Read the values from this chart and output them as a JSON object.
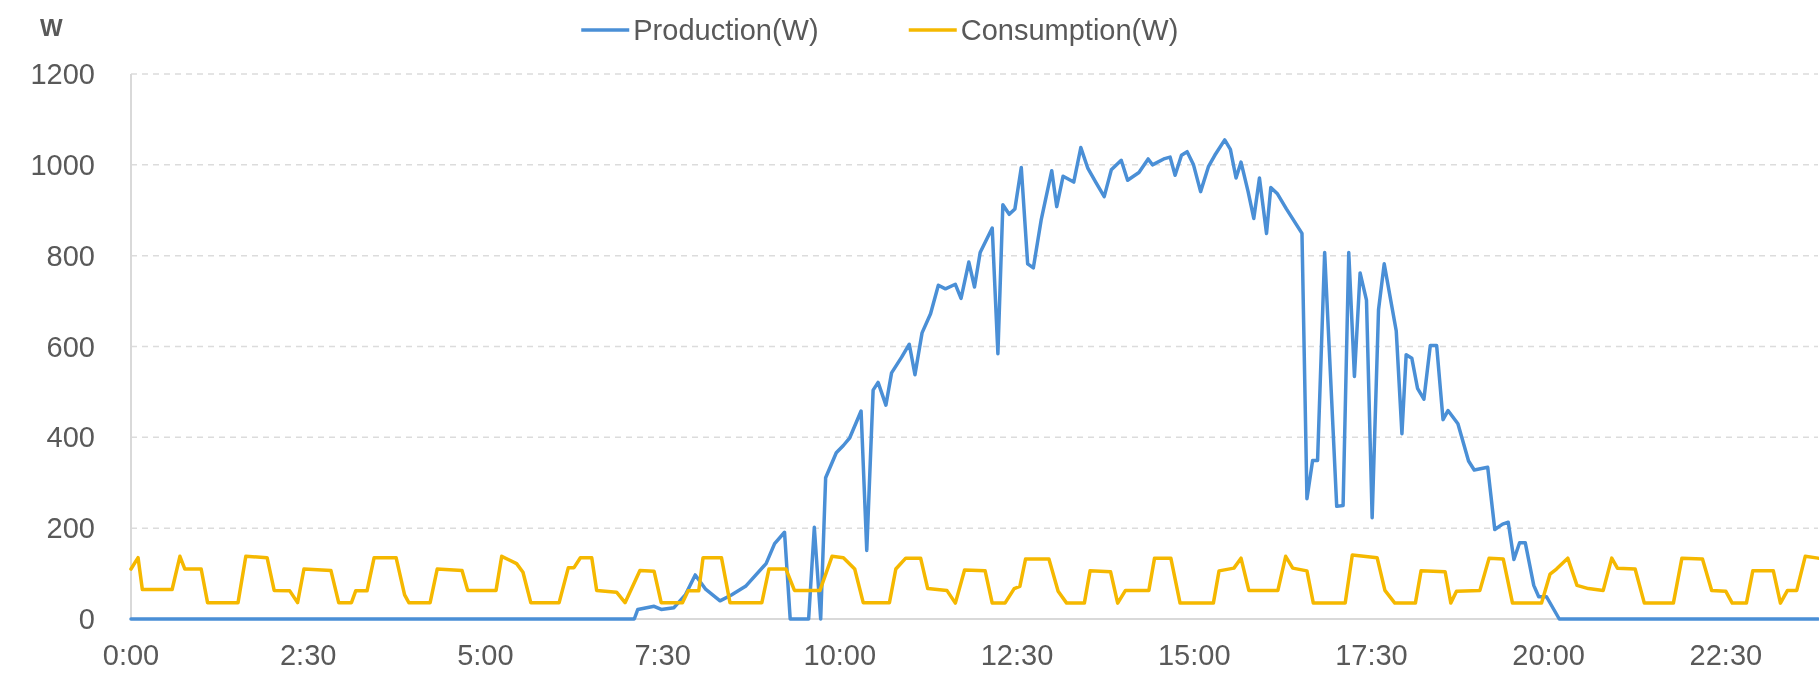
{
  "chart_data": {
    "type": "line",
    "ylabel": "W",
    "xlim": [
      0,
      23.8
    ],
    "xticks": [
      {
        "value": 0,
        "label": "0:00"
      },
      {
        "value": 2.5,
        "label": "2:30"
      },
      {
        "value": 5,
        "label": "5:00"
      },
      {
        "value": 7.5,
        "label": "7:30"
      },
      {
        "value": 10,
        "label": "10:00"
      },
      {
        "value": 12.5,
        "label": "12:30"
      },
      {
        "value": 15,
        "label": "15:00"
      },
      {
        "value": 17.5,
        "label": "17:30"
      },
      {
        "value": 20,
        "label": "20:00"
      },
      {
        "value": 22.5,
        "label": "22:30"
      }
    ],
    "ylim": [
      0,
      1200
    ],
    "yticks": [
      0,
      200,
      400,
      600,
      800,
      1000,
      1200
    ],
    "grid": "y",
    "legend": "top",
    "series": [
      {
        "name": "Production(W)",
        "color": "#4a8fd6",
        "x": [
          0,
          7.1,
          7.15,
          7.38,
          7.48,
          7.66,
          7.82,
          7.96,
          8.11,
          8.31,
          8.47,
          8.67,
          8.96,
          9.08,
          9.22,
          9.3,
          9.56,
          9.64,
          9.73,
          9.8,
          9.95,
          10.05,
          10.14,
          10.3,
          10.38,
          10.47,
          10.54,
          10.65,
          10.73,
          10.87,
          10.98,
          11.06,
          11.16,
          11.28,
          11.39,
          11.49,
          11.63,
          11.71,
          11.82,
          11.9,
          11.98,
          12.15,
          12.23,
          12.3,
          12.39,
          12.47,
          12.56,
          12.65,
          12.73,
          12.84,
          12.99,
          13.06,
          13.15,
          13.3,
          13.4,
          13.5,
          13.61,
          13.73,
          13.83,
          13.97,
          14.06,
          14.22,
          14.35,
          14.41,
          14.57,
          14.66,
          14.73,
          14.82,
          14.9,
          14.99,
          15.09,
          15.2,
          15.29,
          15.43,
          15.51,
          15.59,
          15.66,
          15.76,
          15.84,
          15.92,
          16.02,
          16.08,
          16.17,
          16.3,
          16.52,
          16.59,
          16.67,
          16.74,
          16.84,
          17.01,
          17.1,
          17.18,
          17.26,
          17.34,
          17.43,
          17.51,
          17.6,
          17.68,
          17.85,
          17.93,
          17.99,
          18.07,
          18.15,
          18.24,
          18.33,
          18.42,
          18.51,
          18.58,
          18.72,
          18.87,
          18.95,
          19.14,
          19.24,
          19.35,
          19.43,
          19.51,
          19.59,
          19.67,
          19.79,
          19.86,
          19.97,
          20.15,
          23.8
        ],
        "values": [
          0,
          0,
          21,
          28,
          21,
          25,
          53,
          97,
          65,
          40,
          53,
          72,
          122,
          166,
          191,
          0,
          0,
          202,
          0,
          311,
          366,
          382,
          399,
          458,
          151,
          504,
          521,
          471,
          542,
          576,
          605,
          538,
          630,
          672,
          735,
          727,
          737,
          706,
          786,
          731,
          807,
          861,
          584,
          912,
          891,
          903,
          994,
          782,
          773,
          878,
          987,
          908,
          975,
          962,
          1038,
          992,
          962,
          930,
          989,
          1010,
          966,
          983,
          1013,
          1000,
          1013,
          1017,
          977,
          1021,
          1029,
          1000,
          941,
          996,
          1021,
          1055,
          1034,
          971,
          1006,
          941,
          882,
          971,
          849,
          950,
          937,
          903,
          849,
          265,
          349,
          349,
          807,
          248,
          250,
          807,
          534,
          762,
          702,
          223,
          681,
          782,
          634,
          408,
          582,
          574,
          508,
          484,
          602,
          602,
          439,
          459,
          430,
          348,
          328,
          334,
          197,
          209,
          213,
          131,
          168,
          168,
          74,
          49,
          49,
          0,
          0
        ]
      },
      {
        "name": "Consumption(W)",
        "color": "#f5b800",
        "x": [
          0,
          0.1,
          0.16,
          0.58,
          0.69,
          0.76,
          0.99,
          1.08,
          1.51,
          1.62,
          1.92,
          2.02,
          2.24,
          2.35,
          2.44,
          2.82,
          2.93,
          3.11,
          3.17,
          3.33,
          3.43,
          3.74,
          3.86,
          3.92,
          4.22,
          4.32,
          4.67,
          4.75,
          5.15,
          5.23,
          5.44,
          5.53,
          5.64,
          6.04,
          6.17,
          6.25,
          6.34,
          6.5,
          6.57,
          6.85,
          6.97,
          7.18,
          7.38,
          7.48,
          7.78,
          7.86,
          8.01,
          8.07,
          8.33,
          8.45,
          8.9,
          9,
          9.24,
          9.36,
          9.72,
          9.89,
          10.05,
          10.21,
          10.33,
          10.7,
          10.79,
          10.93,
          11.14,
          11.24,
          11.51,
          11.63,
          11.76,
          12.05,
          12.15,
          12.33,
          12.46,
          12.54,
          12.62,
          12.95,
          13.08,
          13.2,
          13.45,
          13.53,
          13.82,
          13.92,
          14.03,
          14.36,
          14.44,
          14.67,
          14.8,
          15.27,
          15.35,
          15.56,
          15.66,
          15.77,
          16.18,
          16.29,
          16.39,
          16.59,
          16.68,
          17.13,
          17.23,
          17.58,
          17.69,
          17.83,
          18.12,
          18.2,
          18.54,
          18.62,
          18.7,
          19.03,
          19.16,
          19.36,
          19.49,
          19.9,
          20.02,
          20.11,
          20.27,
          20.4,
          20.56,
          20.77,
          20.89,
          20.97,
          21.22,
          21.35,
          21.76,
          21.88,
          22.17,
          22.3,
          22.5,
          22.59,
          22.79,
          22.88,
          23.17,
          23.27,
          23.37,
          23.5,
          23.62,
          23.8
        ],
        "values": [
          110,
          135,
          65,
          65,
          138,
          110,
          110,
          36,
          36,
          138,
          135,
          63,
          62,
          36,
          110,
          107,
          36,
          36,
          62,
          62,
          135,
          135,
          53,
          36,
          36,
          110,
          107,
          63,
          63,
          138,
          122,
          103,
          36,
          36,
          113,
          113,
          135,
          135,
          63,
          59,
          36,
          107,
          105,
          36,
          36,
          62,
          62,
          135,
          135,
          36,
          36,
          110,
          110,
          63,
          63,
          138,
          135,
          110,
          36,
          36,
          110,
          134,
          134,
          67,
          63,
          35,
          108,
          106,
          35,
          35,
          67,
          72,
          132,
          132,
          61,
          35,
          35,
          106,
          104,
          35,
          63,
          63,
          134,
          134,
          35,
          35,
          106,
          112,
          134,
          63,
          63,
          138,
          112,
          106,
          35,
          35,
          141,
          135,
          63,
          35,
          35,
          106,
          104,
          35,
          61,
          63,
          134,
          132,
          35,
          35,
          99,
          110,
          134,
          74,
          67,
          63,
          134,
          112,
          110,
          35,
          35,
          134,
          132,
          63,
          61,
          35,
          35,
          106,
          106,
          35,
          63,
          63,
          138,
          134
        ]
      }
    ]
  }
}
